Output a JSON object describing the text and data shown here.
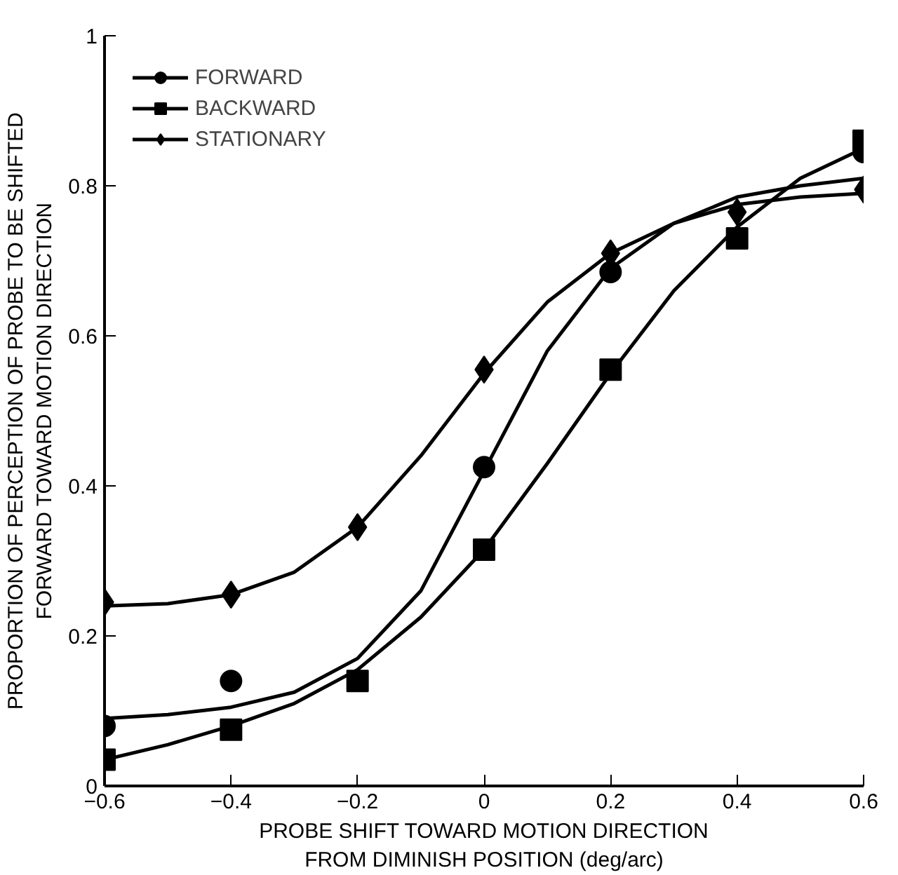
{
  "chart_data": {
    "type": "line",
    "xlabel": "PROBE SHIFT TOWARD MOTION DIRECTION\nFROM DIMINISH POSITION (deg/arc)",
    "ylabel": "PROPORTION OF PERCEPTION OF PROBE TO BE SHIFTED\nFORWARD TOWARD MOTION DIRECTION",
    "x": [
      -0.6,
      -0.4,
      -0.2,
      0,
      0.2,
      0.4,
      0.6
    ],
    "series": [
      {
        "name": "FORWARD",
        "type": "scatter",
        "marker": "circle",
        "color": "#000000",
        "values": [
          0.08,
          0.14,
          null,
          0.425,
          0.685,
          null,
          0.845
        ]
      },
      {
        "color": "#000000",
        "x": [
          -0.6,
          -0.5,
          -0.4,
          -0.3,
          -0.2,
          -0.1,
          0,
          0.1,
          0.2,
          0.3,
          0.4,
          0.5,
          0.6
        ],
        "values": [
          0.09,
          0.095,
          0.105,
          0.125,
          0.17,
          0.26,
          0.42,
          0.58,
          0.69,
          0.75,
          0.785,
          0.8,
          0.81
        ]
      },
      {
        "name": "BACKWARD",
        "type": "scatter",
        "marker": "square",
        "color": "#000000",
        "values": [
          0.035,
          0.075,
          0.14,
          0.315,
          0.555,
          0.73,
          0.86
        ]
      },
      {
        "color": "#000000",
        "x": [
          -0.6,
          -0.5,
          -0.4,
          -0.3,
          -0.2,
          -0.1,
          0,
          0.1,
          0.2,
          0.3,
          0.4,
          0.5,
          0.6
        ],
        "values": [
          0.035,
          0.055,
          0.08,
          0.11,
          0.155,
          0.225,
          0.315,
          0.43,
          0.55,
          0.66,
          0.745,
          0.81,
          0.85
        ]
      },
      {
        "name": "STATIONARY",
        "type": "scatter",
        "marker": "diamond",
        "color": "#000000",
        "values": [
          0.245,
          0.255,
          0.345,
          0.555,
          0.71,
          0.765,
          0.795
        ]
      },
      {
        "color": "#000000",
        "x": [
          -0.6,
          -0.5,
          -0.4,
          -0.3,
          -0.2,
          -0.1,
          0,
          0.1,
          0.2,
          0.3,
          0.4,
          0.5,
          0.6
        ],
        "values": [
          0.24,
          0.243,
          0.255,
          0.285,
          0.345,
          0.44,
          0.55,
          0.645,
          0.71,
          0.75,
          0.775,
          0.785,
          0.79
        ]
      }
    ],
    "xlim": [
      -0.6,
      0.6
    ],
    "ylim": [
      0,
      1
    ],
    "xticks": [
      {
        "value": -0.6,
        "label": "−0.6"
      },
      {
        "value": -0.4,
        "label": "−0.4"
      },
      {
        "value": -0.2,
        "label": "−0.2"
      },
      0,
      0.2,
      0.4,
      0.6
    ],
    "yticks": [
      0,
      0.2,
      0.4,
      0.6,
      0.8,
      1
    ],
    "grid": false,
    "legend": "top left",
    "line_style": "solid"
  }
}
